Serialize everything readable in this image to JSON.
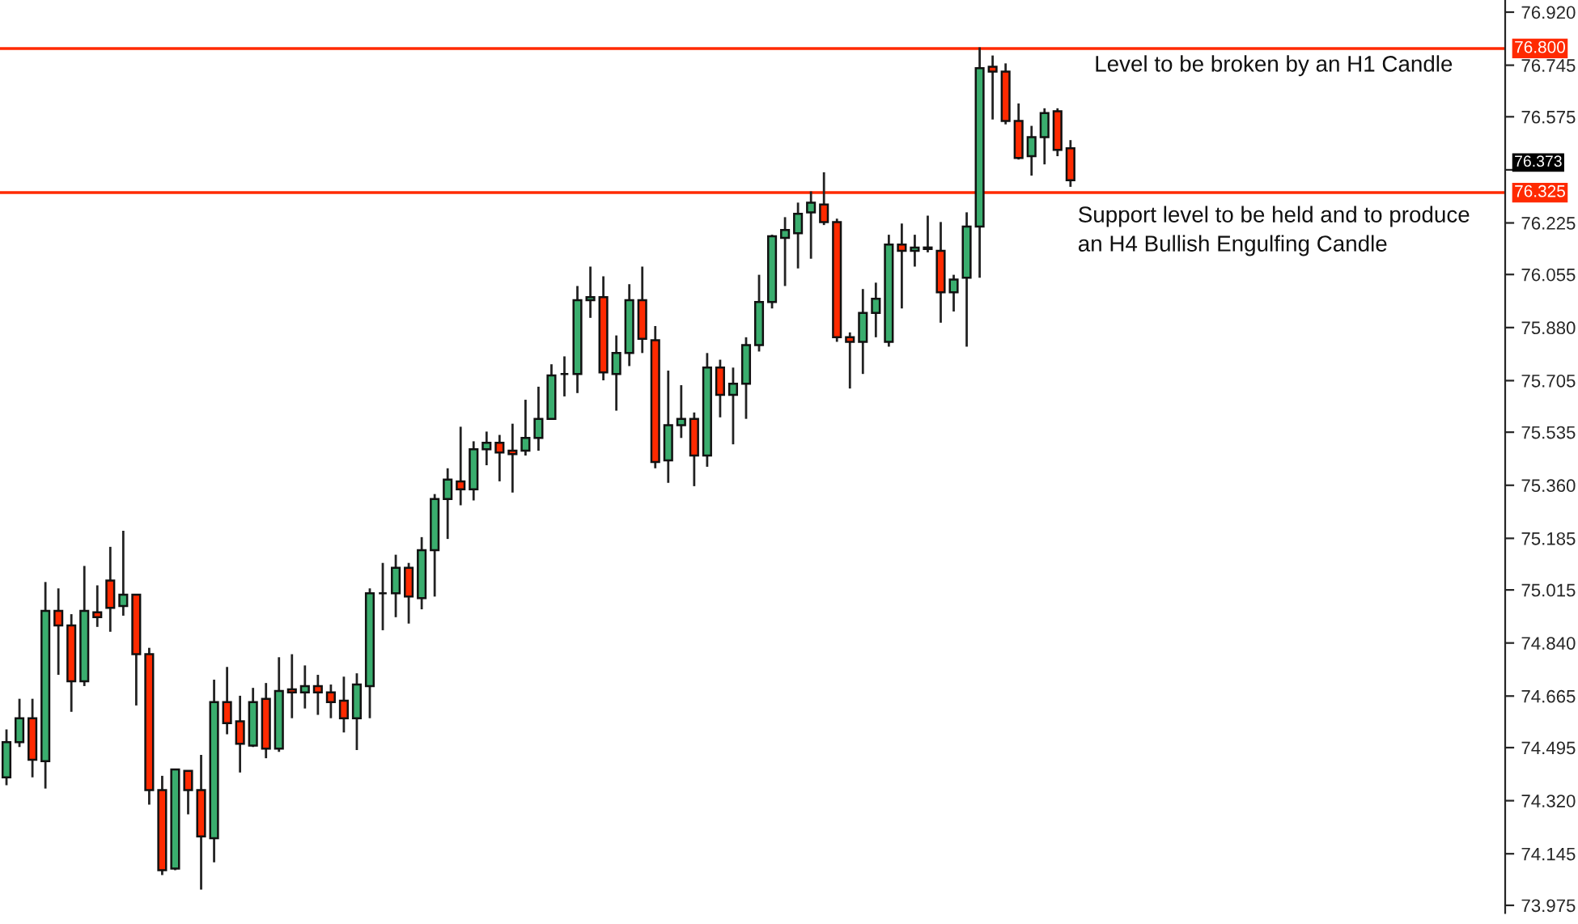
{
  "chart_data": {
    "type": "candlestick",
    "categories": [
      null,
      null,
      null,
      null,
      null,
      null,
      null,
      null,
      null,
      null,
      null,
      null,
      null,
      null,
      null,
      null,
      null,
      null,
      null,
      null,
      null,
      null,
      null,
      null,
      null,
      null,
      null,
      null,
      null,
      null,
      null,
      null,
      null,
      null,
      null,
      null,
      null,
      null,
      null,
      null,
      null,
      null,
      null,
      null,
      null,
      null,
      null,
      null,
      null,
      null,
      null,
      null,
      null,
      null,
      null,
      null,
      null,
      null,
      null,
      null,
      null,
      null,
      null,
      null,
      null,
      null,
      null,
      null,
      null,
      null,
      null,
      null,
      null,
      null,
      null,
      null,
      null,
      null,
      null,
      null,
      null,
      null,
      null,
      null,
      null,
      null,
      null,
      null,
      null,
      null,
      null,
      null,
      null,
      null,
      null,
      null,
      null,
      null,
      null,
      null,
      null,
      null,
      null,
      null,
      null,
      null,
      null,
      null,
      null,
      null,
      null,
      null,
      null,
      null,
      null,
      null
    ],
    "ohlc": [
      [
        74.397,
        74.555,
        74.371,
        74.513
      ],
      [
        74.513,
        74.656,
        74.497,
        74.592
      ],
      [
        74.592,
        74.656,
        74.397,
        74.455
      ],
      [
        74.45,
        75.041,
        74.36,
        74.946
      ],
      [
        74.946,
        75.02,
        74.735,
        74.898
      ],
      [
        74.898,
        74.935,
        74.613,
        74.714
      ],
      [
        74.714,
        75.094,
        74.698,
        74.946
      ],
      [
        74.941,
        75.03,
        74.893,
        74.925
      ],
      [
        75.046,
        75.157,
        74.877,
        74.956
      ],
      [
        74.962,
        75.21,
        74.93,
        74.999
      ],
      [
        74.999,
        74.999,
        74.634,
        74.803
      ],
      [
        74.803,
        74.824,
        74.307,
        74.355
      ],
      [
        74.355,
        74.402,
        74.075,
        74.091
      ],
      [
        74.096,
        74.423,
        74.091,
        74.423
      ],
      [
        74.418,
        74.418,
        74.275,
        74.355
      ],
      [
        74.355,
        74.471,
        74.027,
        74.202
      ],
      [
        74.196,
        74.719,
        74.117,
        74.645
      ],
      [
        74.645,
        74.761,
        74.539,
        74.576
      ],
      [
        74.582,
        74.666,
        74.413,
        74.508
      ],
      [
        74.502,
        74.692,
        74.497,
        74.645
      ],
      [
        74.656,
        74.708,
        74.46,
        74.492
      ],
      [
        74.492,
        74.793,
        74.481,
        74.682
      ],
      [
        74.687,
        74.803,
        74.592,
        74.677
      ],
      [
        74.677,
        74.766,
        74.624,
        74.698
      ],
      [
        74.698,
        74.735,
        74.603,
        74.677
      ],
      [
        74.677,
        74.703,
        74.592,
        74.645
      ],
      [
        74.65,
        74.729,
        74.545,
        74.592
      ],
      [
        74.592,
        74.74,
        74.487,
        74.703
      ],
      [
        74.698,
        75.02,
        74.592,
        75.004
      ],
      [
        75.004,
        75.104,
        74.882,
        75.004
      ],
      [
        75.004,
        75.131,
        74.925,
        75.088
      ],
      [
        75.088,
        75.104,
        74.904,
        74.993
      ],
      [
        74.988,
        75.189,
        74.951,
        75.146
      ],
      [
        75.146,
        75.331,
        74.993,
        75.315
      ],
      [
        75.315,
        75.416,
        75.183,
        75.379
      ],
      [
        75.373,
        75.553,
        75.294,
        75.347
      ],
      [
        75.347,
        75.505,
        75.31,
        75.479
      ],
      [
        75.479,
        75.537,
        75.426,
        75.5
      ],
      [
        75.5,
        75.526,
        75.373,
        75.468
      ],
      [
        75.474,
        75.563,
        75.336,
        75.463
      ],
      [
        75.474,
        75.642,
        75.458,
        75.516
      ],
      [
        75.516,
        75.685,
        75.474,
        75.579
      ],
      [
        75.579,
        75.759,
        75.579,
        75.722
      ],
      [
        75.727,
        75.785,
        75.653,
        75.727
      ],
      [
        75.727,
        76.017,
        75.664,
        75.97
      ],
      [
        75.97,
        76.081,
        75.912,
        75.98
      ],
      [
        75.98,
        76.049,
        75.706,
        75.732
      ],
      [
        75.727,
        75.854,
        75.606,
        75.796
      ],
      [
        75.796,
        76.023,
        75.753,
        75.97
      ],
      [
        75.97,
        76.081,
        75.796,
        75.843
      ],
      [
        75.838,
        75.885,
        75.416,
        75.437
      ],
      [
        75.442,
        75.738,
        75.368,
        75.558
      ],
      [
        75.558,
        75.69,
        75.516,
        75.579
      ],
      [
        75.579,
        75.6,
        75.357,
        75.458
      ],
      [
        75.458,
        75.796,
        75.421,
        75.748
      ],
      [
        75.748,
        75.774,
        75.584,
        75.658
      ],
      [
        75.658,
        75.748,
        75.495,
        75.695
      ],
      [
        75.695,
        75.848,
        75.579,
        75.822
      ],
      [
        75.822,
        76.054,
        75.801,
        75.964
      ],
      [
        75.964,
        76.186,
        75.943,
        76.181
      ],
      [
        76.176,
        76.244,
        76.017,
        76.202
      ],
      [
        76.191,
        76.292,
        76.075,
        76.255
      ],
      [
        76.26,
        76.329,
        76.107,
        76.292
      ],
      [
        76.286,
        76.392,
        76.218,
        76.228
      ],
      [
        76.228,
        76.239,
        75.833,
        75.848
      ],
      [
        75.848,
        75.864,
        75.679,
        75.833
      ],
      [
        75.833,
        76.007,
        75.727,
        75.928
      ],
      [
        75.928,
        76.028,
        75.848,
        75.975
      ],
      [
        75.833,
        76.186,
        75.817,
        76.154
      ],
      [
        76.154,
        76.223,
        75.943,
        76.133
      ],
      [
        76.133,
        76.186,
        76.081,
        76.144
      ],
      [
        76.144,
        76.249,
        76.128,
        76.139
      ],
      [
        76.133,
        76.228,
        75.896,
        75.996
      ],
      [
        75.996,
        76.054,
        75.933,
        76.038
      ],
      [
        76.044,
        76.26,
        75.817,
        76.213
      ],
      [
        76.213,
        76.804,
        76.044,
        76.735
      ],
      [
        76.74,
        76.777,
        76.566,
        76.724
      ],
      [
        76.724,
        76.751,
        76.55,
        76.561
      ],
      [
        76.561,
        76.619,
        76.434,
        76.439
      ],
      [
        76.445,
        76.545,
        76.381,
        76.508
      ],
      [
        76.508,
        76.603,
        76.418,
        76.587
      ],
      [
        76.593,
        76.603,
        76.445,
        76.466
      ],
      [
        76.471,
        76.498,
        76.344,
        76.366
      ],
      null,
      null,
      null,
      null,
      null,
      null,
      null,
      null,
      null,
      null,
      null,
      null,
      null,
      null,
      null,
      null,
      null,
      null,
      null,
      null,
      null,
      null,
      null,
      null,
      null,
      null,
      null,
      null,
      null,
      null,
      null,
      null,
      null
    ],
    "colors": [
      "#3aad6e",
      "#3aad6e",
      "#ff2a00",
      "#3aad6e",
      "#ff2a00",
      "#ff2a00",
      "#3aad6e",
      "#ff2a00",
      "#ff2a00",
      "#3aad6e",
      "#ff2a00",
      "#ff2a00",
      "#ff2a00",
      "#3aad6e",
      "#ff2a00",
      "#ff2a00",
      "#3aad6e",
      "#ff2a00",
      "#ff2a00",
      "#3aad6e",
      "#ff2a00",
      "#3aad6e",
      "#ff2a00",
      "#3aad6e",
      "#ff2a00",
      "#ff2a00",
      "#ff2a00",
      "#3aad6e",
      "#3aad6e",
      "#111111",
      "#3aad6e",
      "#ff2a00",
      "#3aad6e",
      "#3aad6e",
      "#3aad6e",
      "#ff2a00",
      "#3aad6e",
      "#3aad6e",
      "#ff2a00",
      "#ff2a00",
      "#3aad6e",
      "#3aad6e",
      "#3aad6e",
      "#111111",
      "#3aad6e",
      "#3aad6e",
      "#ff2a00",
      "#3aad6e",
      "#3aad6e",
      "#ff2a00",
      "#ff2a00",
      "#3aad6e",
      "#3aad6e",
      "#ff2a00",
      "#3aad6e",
      "#ff2a00",
      "#3aad6e",
      "#3aad6e",
      "#3aad6e",
      "#3aad6e",
      "#3aad6e",
      "#3aad6e",
      "#3aad6e",
      "#ff2a00",
      "#ff2a00",
      "#ff2a00",
      "#3aad6e",
      "#3aad6e",
      "#3aad6e",
      "#ff2a00",
      "#3aad6e",
      "#ff2a00",
      "#ff2a00",
      "#3aad6e",
      "#3aad6e",
      "#3aad6e",
      "#ff2a00",
      "#ff2a00",
      "#ff2a00",
      "#3aad6e",
      "#3aad6e",
      "#ff2a00",
      "#ff2a00",
      null,
      null,
      null,
      null,
      null,
      null,
      null,
      null,
      null,
      null,
      null,
      null,
      null,
      null,
      null,
      null,
      null,
      null,
      null,
      null,
      null,
      null,
      null,
      null,
      null,
      null,
      null,
      null,
      null,
      null,
      null,
      null,
      null
    ],
    "ylim": [
      73.95,
      76.96
    ],
    "yticks": [
      {
        "value": 76.92,
        "label": "76.920"
      },
      76.745,
      76.575,
      {
        "value": 76.4,
        "label": null
      },
      76.225,
      76.055,
      {
        "value": 75.88,
        "label": "75.880"
      },
      75.705,
      75.535,
      {
        "value": 75.36,
        "label": "75.360"
      },
      75.185,
      75.015,
      {
        "value": 74.84,
        "label": "74.840"
      },
      74.665,
      74.495,
      {
        "value": 74.32,
        "label": "74.320"
      },
      74.145,
      73.975
    ],
    "ref_lines": [
      {
        "axis": "y",
        "value": 76.8,
        "label": "76.800",
        "color": "#ff2a00"
      },
      {
        "axis": "y",
        "value": 76.325,
        "label": "76.325",
        "color": "#ff2a00"
      }
    ],
    "annotations": [
      "Level to be broken by an H1 Candle",
      "Support level to be held and to produce\nan H4 Bullish Engulfing Candle",
      "76.373"
    ],
    "grid": false
  }
}
